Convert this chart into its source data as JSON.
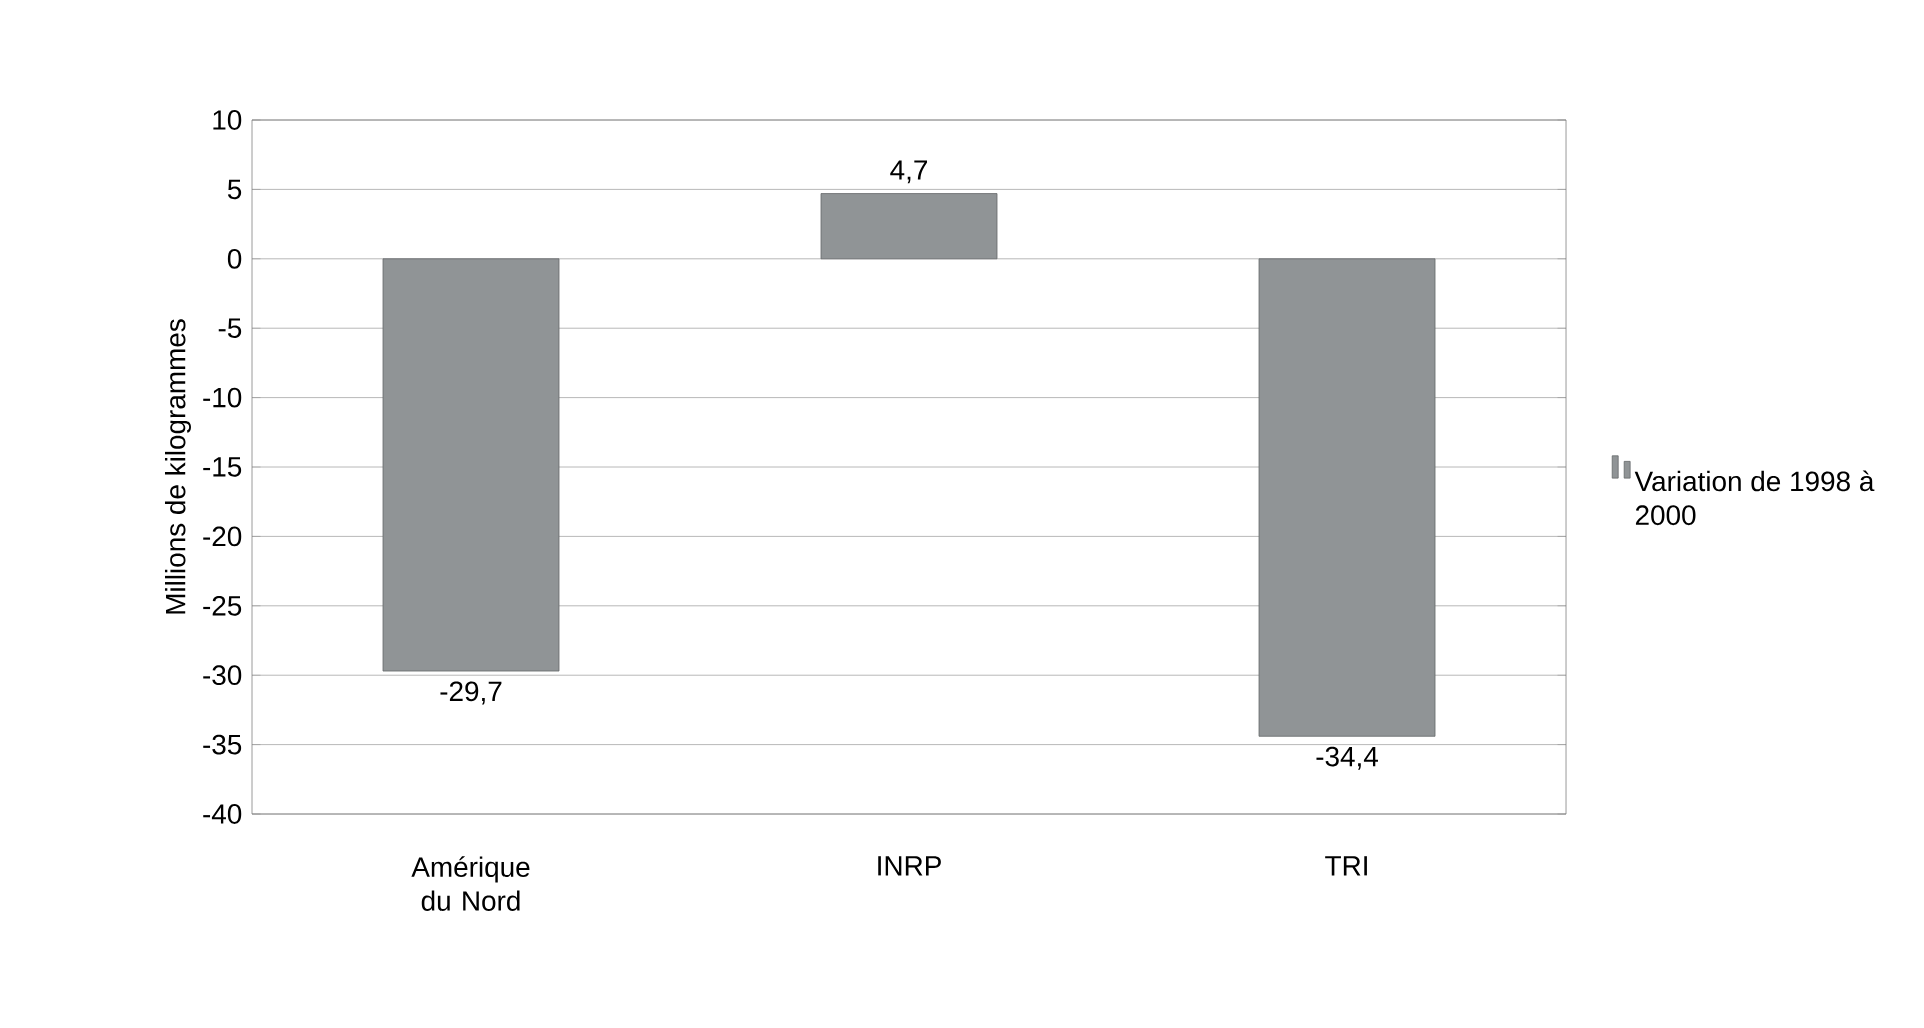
{
  "chart_data": {
    "type": "bar",
    "ylabel": "Millions de kilogrammes",
    "categories": [
      "Amérique du Nord",
      "INRP",
      "TRI"
    ],
    "series": [
      {
        "name": "Variation de 1998 à 2000",
        "color": "#909496",
        "values": [
          -29.7,
          4.7,
          -34.4
        ],
        "value_labels": [
          "-29,7",
          "4,7",
          "-34,4"
        ]
      }
    ],
    "ylim": [
      -40,
      10
    ],
    "yticks": [
      -40,
      -35,
      -30,
      -25,
      -20,
      -15,
      -10,
      -5,
      0,
      5,
      10
    ],
    "grid": "y",
    "legend": "right"
  }
}
